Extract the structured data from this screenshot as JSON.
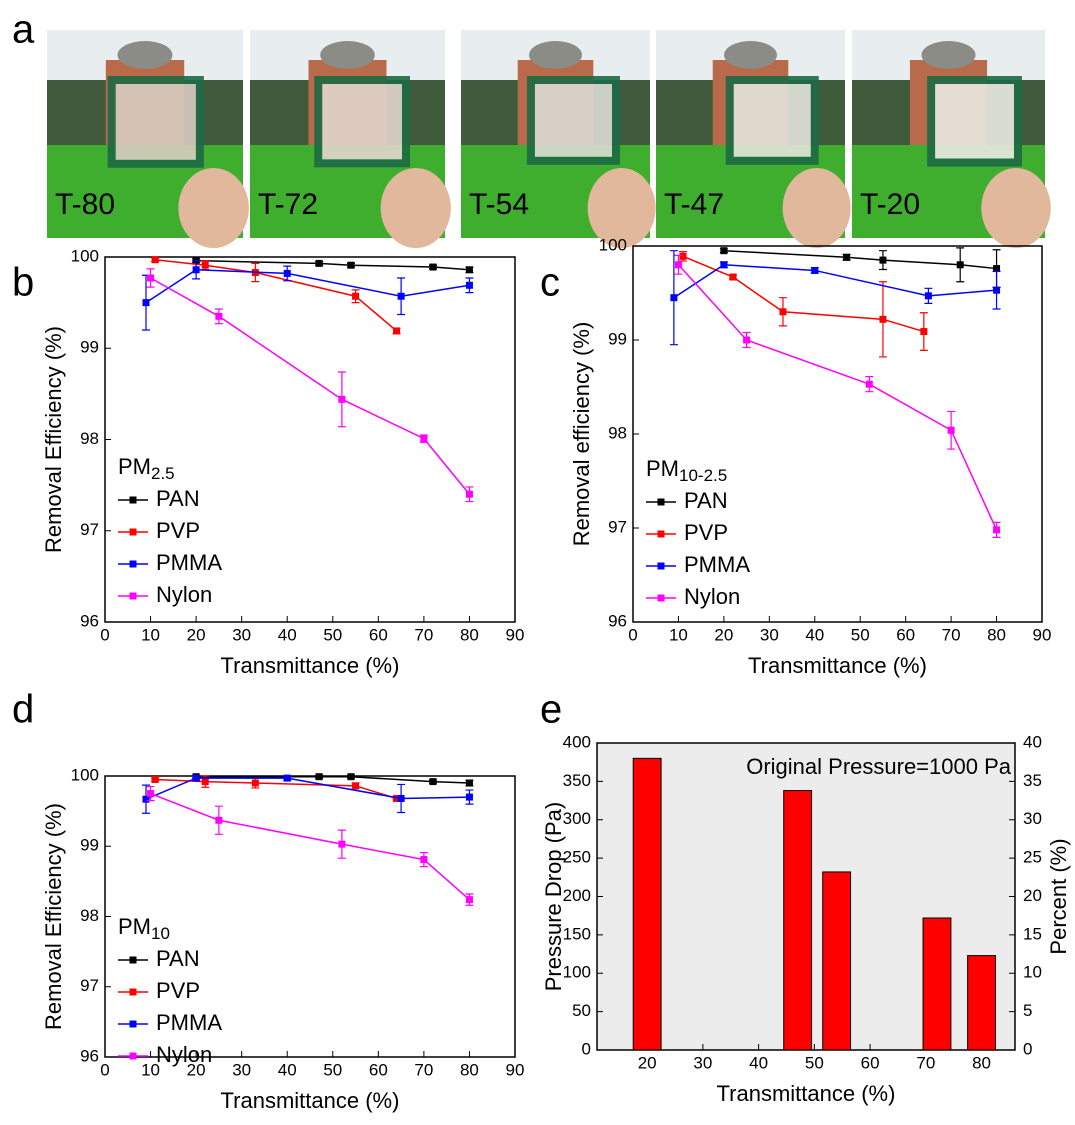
{
  "panel_labels": [
    "a",
    "b",
    "c",
    "d",
    "e"
  ],
  "photos": {
    "labels": [
      "T-80",
      "T-72",
      "T-54",
      "T-47",
      "T-20"
    ]
  },
  "chart_data": [
    {
      "type": "line",
      "legend_title": "PM",
      "legend_title_sub": "2.5",
      "x_label": "Transmittance (%)",
      "y_label": "Removal Efficiency (%)",
      "xlim": [
        0,
        90
      ],
      "xticks": [
        0,
        10,
        20,
        30,
        40,
        50,
        60,
        70,
        80,
        90
      ],
      "ylim": [
        96,
        100
      ],
      "yticks": [
        96,
        97,
        98,
        99,
        100
      ],
      "series": [
        {
          "name": "PAN",
          "color": "#000000",
          "x": [
            20,
            47,
            54,
            72,
            80
          ],
          "values": [
            99.96,
            99.93,
            99.91,
            99.89,
            99.86
          ],
          "errors": [
            0.02,
            0.02,
            0.02,
            0.02,
            0.03
          ]
        },
        {
          "name": "PVP",
          "color": "#ff0000",
          "x": [
            11,
            22,
            33,
            55,
            64
          ],
          "values": [
            99.97,
            99.91,
            99.83,
            99.57,
            99.19
          ],
          "errors": [
            0.02,
            0.05,
            0.1,
            0.07,
            0.03
          ]
        },
        {
          "name": "PMMA",
          "color": "#0000ff",
          "x": [
            9,
            20,
            40,
            65,
            80
          ],
          "values": [
            99.5,
            99.86,
            99.82,
            99.57,
            99.69
          ],
          "errors": [
            0.3,
            0.1,
            0.08,
            0.2,
            0.08
          ]
        },
        {
          "name": "Nylon",
          "color": "#ff00ff",
          "x": [
            10,
            25,
            52,
            70,
            80
          ],
          "values": [
            99.77,
            99.35,
            98.44,
            98.01,
            97.4
          ],
          "errors": [
            0.1,
            0.08,
            0.3,
            0.04,
            0.08
          ]
        }
      ]
    },
    {
      "type": "line",
      "legend_title": "PM",
      "legend_title_sub": "10-2.5",
      "x_label": "Transmittance (%)",
      "y_label": "Removal efficiency (%)",
      "xlim": [
        0,
        90
      ],
      "xticks": [
        0,
        10,
        20,
        30,
        40,
        50,
        60,
        70,
        80,
        90
      ],
      "ylim": [
        96,
        100
      ],
      "yticks": [
        96,
        97,
        98,
        99,
        100
      ],
      "series": [
        {
          "name": "PAN",
          "color": "#000000",
          "x": [
            20,
            47,
            55,
            72,
            80
          ],
          "values": [
            99.95,
            99.88,
            99.85,
            99.8,
            99.76
          ],
          "errors": [
            0.02,
            0.03,
            0.1,
            0.18,
            0.2
          ]
        },
        {
          "name": "PVP",
          "color": "#ff0000",
          "x": [
            11,
            22,
            33,
            55,
            64
          ],
          "values": [
            99.89,
            99.67,
            99.3,
            99.22,
            99.09
          ],
          "errors": [
            0.05,
            0.02,
            0.15,
            0.4,
            0.2
          ]
        },
        {
          "name": "PMMA",
          "color": "#0000ff",
          "x": [
            9,
            20,
            40,
            65,
            80
          ],
          "values": [
            99.45,
            99.8,
            99.74,
            99.47,
            99.53
          ],
          "errors": [
            0.5,
            0.03,
            0.03,
            0.08,
            0.2
          ]
        },
        {
          "name": "Nylon",
          "color": "#ff00ff",
          "x": [
            10,
            25,
            52,
            70,
            80
          ],
          "values": [
            99.8,
            99.0,
            98.53,
            98.04,
            96.98
          ],
          "errors": [
            0.1,
            0.08,
            0.08,
            0.2,
            0.08
          ]
        }
      ]
    },
    {
      "type": "line",
      "legend_title": "PM",
      "legend_title_sub": "10",
      "x_label": "Transmittance (%)",
      "y_label": "Removal Efficiency (%)",
      "xlim": [
        0,
        90
      ],
      "xticks": [
        0,
        10,
        20,
        30,
        40,
        50,
        60,
        70,
        80,
        90
      ],
      "ylim": [
        96,
        100
      ],
      "yticks": [
        96,
        97,
        98,
        99,
        100
      ],
      "series": [
        {
          "name": "PAN",
          "color": "#000000",
          "x": [
            20,
            47,
            54,
            72,
            80
          ],
          "values": [
            99.99,
            99.99,
            99.99,
            99.92,
            99.9
          ],
          "errors": [
            0.02,
            0.02,
            0.02,
            0.02,
            0.04
          ]
        },
        {
          "name": "PVP",
          "color": "#ff0000",
          "x": [
            11,
            22,
            33,
            55,
            64
          ],
          "values": [
            99.95,
            99.92,
            99.9,
            99.86,
            99.68
          ],
          "errors": [
            0.02,
            0.08,
            0.07,
            0.04,
            0.02
          ]
        },
        {
          "name": "PMMA",
          "color": "#0000ff",
          "x": [
            9,
            20,
            40,
            65,
            80
          ],
          "values": [
            99.67,
            99.97,
            99.97,
            99.68,
            99.7
          ],
          "errors": [
            0.2,
            0.03,
            0.03,
            0.2,
            0.1
          ]
        },
        {
          "name": "Nylon",
          "color": "#ff00ff",
          "x": [
            10,
            25,
            52,
            70,
            80
          ],
          "values": [
            99.75,
            99.37,
            99.03,
            98.81,
            98.24
          ],
          "errors": [
            0.1,
            0.2,
            0.2,
            0.1,
            0.08
          ]
        }
      ]
    },
    {
      "type": "bar",
      "annotation": "Original Pressure=1000 Pa",
      "x_label": "Transmittance (%)",
      "y_label": "Pressure Drop (Pa)",
      "y2_label": "Percent (%)",
      "xlim": [
        11,
        86
      ],
      "xticks": [
        20,
        30,
        40,
        50,
        60,
        70,
        80
      ],
      "ylim": [
        0,
        400
      ],
      "yticks": [
        0,
        50,
        100,
        150,
        200,
        250,
        300,
        350,
        400
      ],
      "y2lim": [
        0,
        40
      ],
      "y2ticks": [
        0,
        5,
        10,
        15,
        20,
        25,
        30,
        35,
        40
      ],
      "color": "#ff0000",
      "x": [
        20,
        47,
        54,
        72,
        80
      ],
      "values": [
        380,
        338,
        232,
        172,
        123
      ]
    }
  ]
}
